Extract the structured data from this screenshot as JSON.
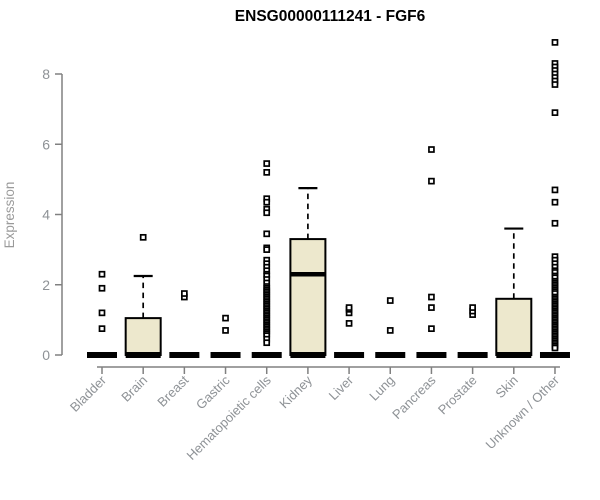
{
  "chart_data": {
    "type": "boxplot",
    "title": "ENSG00000111241 - FGF6",
    "ylabel": "Expression",
    "xlabel": "",
    "ylim": [
      0,
      9
    ],
    "yticks": [
      0,
      2,
      4,
      6,
      8
    ],
    "grid": false,
    "legend": "none",
    "colors": {
      "box_fill": "#EDE8CD",
      "box_stroke": "#000000",
      "median": "#000000",
      "axis": "#808080",
      "tick_label": "#8e9296",
      "background": "#ffffff"
    },
    "categories": [
      "Bladder",
      "Brain",
      "Breast",
      "Gastric",
      "Hematopoietic cells",
      "Kidney",
      "Liver",
      "Lung",
      "Pancreas",
      "Prostate",
      "Skin",
      "Unknown / Other"
    ],
    "series": [
      {
        "category": "Bladder",
        "box": {
          "min": 0,
          "q1": 0,
          "median": 0,
          "q3": 0,
          "max": 0
        },
        "outliers": [
          0.75,
          1.2,
          1.9,
          2.3
        ]
      },
      {
        "category": "Brain",
        "box": {
          "min": 0,
          "q1": 0,
          "median": 0,
          "q3": 1.05,
          "max": 2.25
        },
        "outliers": [
          3.35
        ]
      },
      {
        "category": "Breast",
        "box": {
          "min": 0,
          "q1": 0,
          "median": 0,
          "q3": 0,
          "max": 0
        },
        "outliers": [
          1.65,
          1.75
        ]
      },
      {
        "category": "Gastric",
        "box": {
          "min": 0,
          "q1": 0,
          "median": 0,
          "q3": 0,
          "max": 0
        },
        "outliers": [
          0.7,
          1.05
        ]
      },
      {
        "category": "Hematopoietic cells",
        "box": {
          "min": 0,
          "q1": 0,
          "median": 0,
          "q3": 0,
          "max": 0
        },
        "outliers": [
          5.45,
          5.2,
          4.45,
          4.35,
          4.15,
          4.05,
          3.45,
          3.05,
          3.0,
          2.7,
          2.6,
          2.5,
          2.4,
          2.3,
          2.25,
          2.15,
          2.05,
          1.95,
          1.9,
          1.85,
          1.8,
          1.75,
          1.7,
          1.65,
          1.6,
          1.55,
          1.5,
          1.45,
          1.4,
          1.35,
          1.3,
          1.25,
          1.2,
          1.15,
          1.1,
          1.05,
          1.0,
          0.95,
          0.9,
          0.85,
          0.8,
          0.75,
          0.7,
          0.65,
          0.6,
          0.55,
          0.45,
          0.35
        ]
      },
      {
        "category": "Kidney",
        "box": {
          "min": 0,
          "q1": 0,
          "median": 2.3,
          "q3": 3.3,
          "max": 4.75
        },
        "outliers": []
      },
      {
        "category": "Liver",
        "box": {
          "min": 0,
          "q1": 0,
          "median": 0,
          "q3": 0,
          "max": 0
        },
        "outliers": [
          0.9,
          1.2,
          1.3,
          1.35
        ]
      },
      {
        "category": "Lung",
        "box": {
          "min": 0,
          "q1": 0,
          "median": 0,
          "q3": 0,
          "max": 0
        },
        "outliers": [
          0.7,
          1.55
        ]
      },
      {
        "category": "Pancreas",
        "box": {
          "min": 0,
          "q1": 0,
          "median": 0,
          "q3": 0,
          "max": 0
        },
        "outliers": [
          0.75,
          1.35,
          1.65,
          4.95,
          5.85
        ]
      },
      {
        "category": "Prostate",
        "box": {
          "min": 0,
          "q1": 0,
          "median": 0,
          "q3": 0,
          "max": 0
        },
        "outliers": [
          1.15,
          1.25,
          1.35
        ]
      },
      {
        "category": "Skin",
        "box": {
          "min": 0,
          "q1": 0,
          "median": 0,
          "q3": 1.6,
          "max": 3.6
        },
        "outliers": []
      },
      {
        "category": "Unknown / Other",
        "box": {
          "min": 0,
          "q1": 0,
          "median": 0,
          "q3": 0,
          "max": 0
        },
        "outliers": [
          8.9,
          8.3,
          8.2,
          8.1,
          8.0,
          7.9,
          7.8,
          7.7,
          6.9,
          4.7,
          4.35,
          3.75,
          2.8,
          2.7,
          2.6,
          2.5,
          2.4,
          2.35,
          2.25,
          2.2,
          2.1,
          2.05,
          2.0,
          1.95,
          1.9,
          1.85,
          1.8,
          1.75,
          1.65,
          1.6,
          1.55,
          1.5,
          1.45,
          1.4,
          1.35,
          1.3,
          1.25,
          1.2,
          1.15,
          1.1,
          1.05,
          1.0,
          0.95,
          0.9,
          0.85,
          0.8,
          0.75,
          0.7,
          0.65,
          0.6,
          0.55,
          0.5,
          0.45,
          0.4,
          0.35,
          0.3,
          0.25,
          0.2
        ]
      }
    ]
  }
}
